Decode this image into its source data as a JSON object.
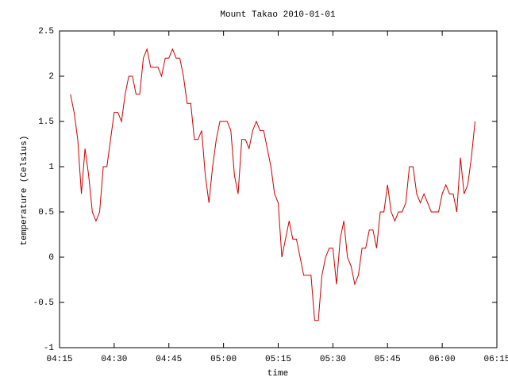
{
  "chart_data": {
    "type": "line",
    "title": "Mount Takao 2010-01-01",
    "xlabel": "time",
    "ylabel": "temperature (Celsius)",
    "x": [
      "04:18",
      "04:19",
      "04:20",
      "04:21",
      "04:22",
      "04:23",
      "04:24",
      "04:25",
      "04:26",
      "04:27",
      "04:28",
      "04:29",
      "04:30",
      "04:31",
      "04:32",
      "04:33",
      "04:34",
      "04:35",
      "04:36",
      "04:37",
      "04:38",
      "04:39",
      "04:40",
      "04:41",
      "04:42",
      "04:43",
      "04:44",
      "04:45",
      "04:46",
      "04:47",
      "04:48",
      "04:49",
      "04:50",
      "04:51",
      "04:52",
      "04:53",
      "04:54",
      "04:55",
      "04:56",
      "04:57",
      "04:58",
      "04:59",
      "05:00",
      "05:01",
      "05:02",
      "05:03",
      "05:04",
      "05:05",
      "05:06",
      "05:07",
      "05:08",
      "05:09",
      "05:10",
      "05:11",
      "05:12",
      "05:13",
      "05:14",
      "05:15",
      "05:16",
      "05:17",
      "05:18",
      "05:19",
      "05:20",
      "05:21",
      "05:22",
      "05:23",
      "05:24",
      "05:25",
      "05:26",
      "05:27",
      "05:28",
      "05:29",
      "05:30",
      "05:31",
      "05:32",
      "05:33",
      "05:34",
      "05:35",
      "05:36",
      "05:37",
      "05:38",
      "05:39",
      "05:40",
      "05:41",
      "05:42",
      "05:43",
      "05:44",
      "05:45",
      "05:46",
      "05:47",
      "05:48",
      "05:49",
      "05:50",
      "05:51",
      "05:52",
      "05:53",
      "05:54",
      "05:55",
      "05:56",
      "05:57",
      "05:58",
      "05:59",
      "06:00",
      "06:01",
      "06:02",
      "06:03",
      "06:04",
      "06:05",
      "06:06",
      "06:07",
      "06:08",
      "06:09"
    ],
    "series": [
      {
        "color": "#cc0000",
        "values": [
          1.8,
          1.6,
          1.3,
          0.7,
          1.2,
          0.9,
          0.5,
          0.4,
          0.5,
          1.0,
          1.0,
          1.3,
          1.6,
          1.6,
          1.5,
          1.8,
          2.0,
          2.0,
          1.8,
          1.8,
          2.2,
          2.3,
          2.1,
          2.1,
          2.1,
          2.0,
          2.2,
          2.2,
          2.3,
          2.2,
          2.2,
          2.0,
          1.7,
          1.7,
          1.3,
          1.3,
          1.4,
          0.9,
          0.6,
          1.0,
          1.3,
          1.5,
          1.5,
          1.5,
          1.4,
          0.9,
          0.7,
          1.3,
          1.3,
          1.2,
          1.4,
          1.5,
          1.4,
          1.4,
          1.2,
          1.0,
          0.7,
          0.6,
          0.0,
          0.2,
          0.4,
          0.2,
          0.2,
          0.0,
          -0.2,
          -0.2,
          -0.2,
          -0.7,
          -0.7,
          -0.2,
          0.0,
          0.1,
          0.1,
          -0.3,
          0.2,
          0.4,
          0.0,
          -0.1,
          -0.3,
          -0.2,
          0.1,
          0.1,
          0.3,
          0.3,
          0.1,
          0.5,
          0.5,
          0.8,
          0.5,
          0.4,
          0.5,
          0.5,
          0.6,
          1.0,
          1.0,
          0.7,
          0.6,
          0.7,
          0.6,
          0.5,
          0.5,
          0.5,
          0.7,
          0.8,
          0.7,
          0.7,
          0.5,
          1.1,
          0.7,
          0.8,
          1.1,
          1.5
        ]
      }
    ],
    "xlim": [
      "04:15",
      "06:15"
    ],
    "xticks": [
      "04:15",
      "04:30",
      "04:45",
      "05:00",
      "05:15",
      "05:30",
      "05:45",
      "06:00",
      "06:15"
    ],
    "ylim": [
      -1,
      2.5
    ],
    "yticks": [
      -1,
      -0.5,
      0,
      0.5,
      1,
      1.5,
      2,
      2.5
    ]
  }
}
